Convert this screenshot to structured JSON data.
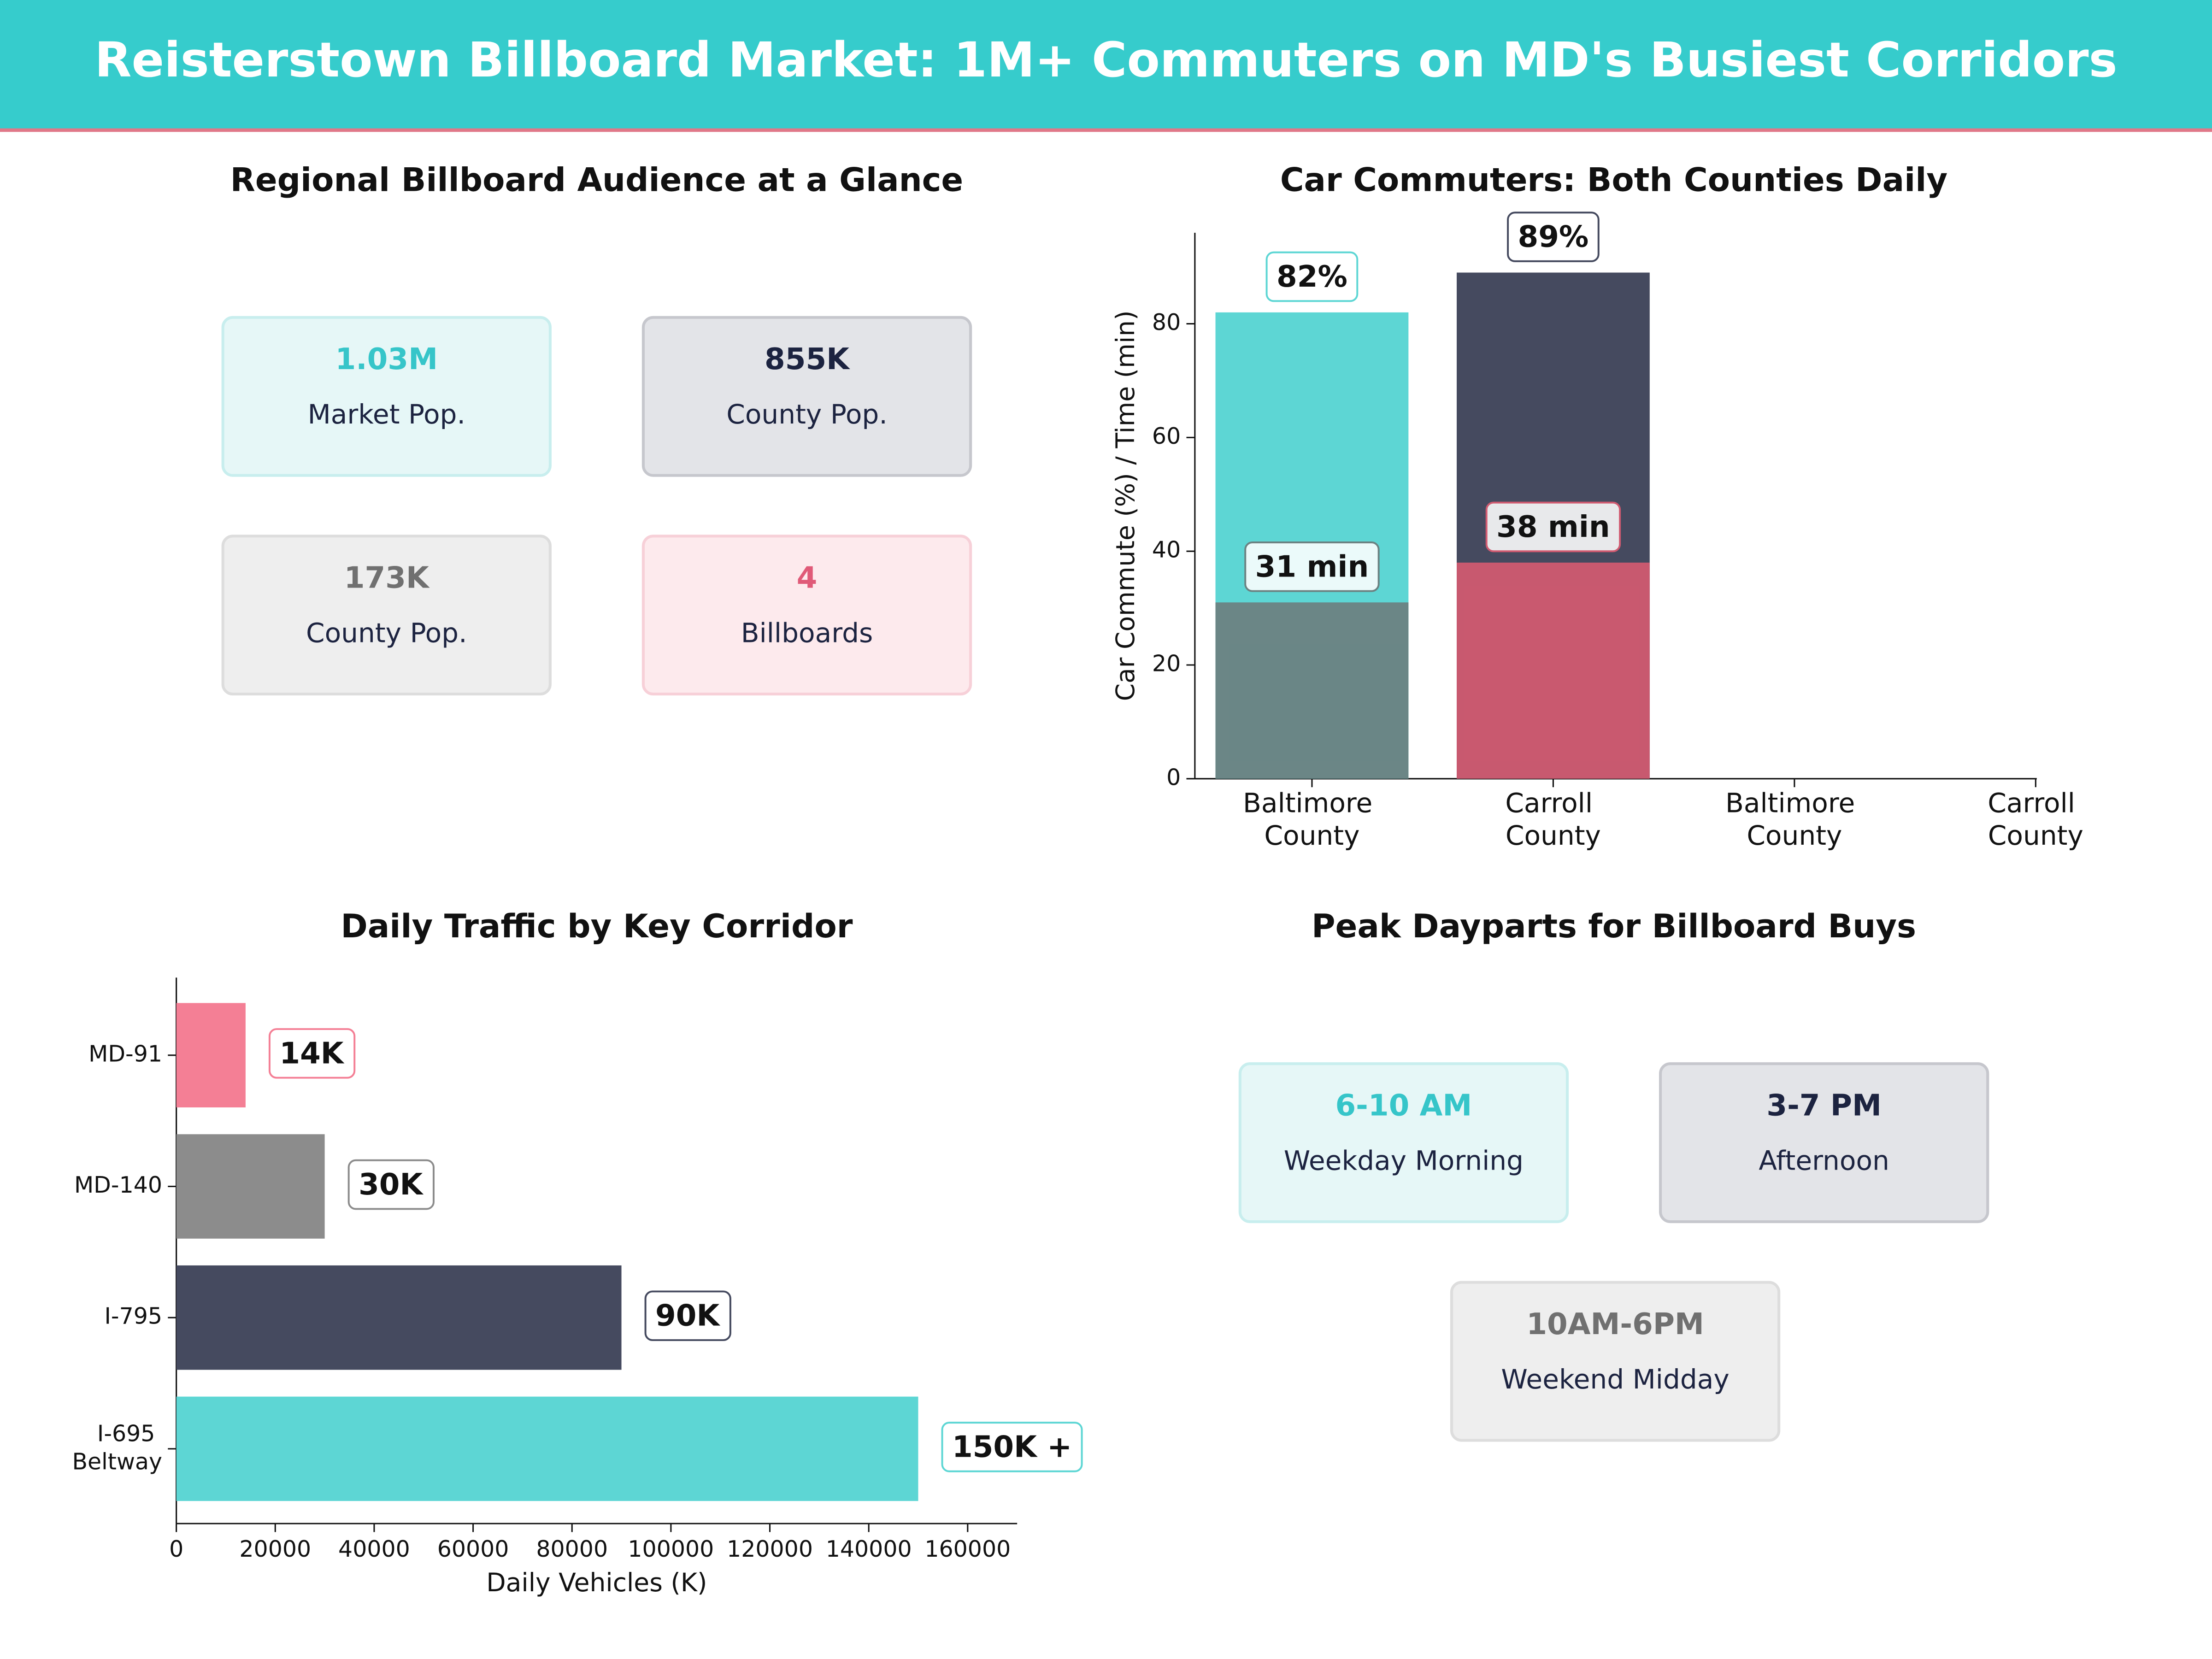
{
  "header": {
    "title": "Reisterstown Billboard Market: 1M+ Commuters on MD's Busiest Corridors"
  },
  "audience": {
    "title": "Regional Billboard Audience at a Glance",
    "cards": [
      {
        "value": "1.03M",
        "label": "Market Pop.",
        "color": "#36c5c9",
        "background": "#e6f7f7",
        "border": "#c8eeee"
      },
      {
        "value": "855K",
        "label": "County Pop.",
        "color": "#1c2340",
        "background": "#e3e4e8",
        "border": "#c6c7cd"
      },
      {
        "value": "173K",
        "label": "County Pop.",
        "color": "#707070",
        "background": "#eeeeee",
        "border": "#dddddd"
      },
      {
        "value": "4",
        "label": "Billboards",
        "color": "#e05a78",
        "background": "#fdeaed",
        "border": "#f7d0d8"
      }
    ]
  },
  "chart_data": [
    {
      "type": "bar",
      "title": "Car Commuters: Both Counties Daily",
      "ylabel": "Car Commute (%) / Time (min)",
      "categories": [
        "Baltimore County",
        "Carroll County",
        "Baltimore County",
        "Carroll County"
      ],
      "series": [
        {
          "values": [
            82,
            89,
            null,
            null
          ],
          "value_labels": [
            "82%",
            "89%",
            null,
            null
          ],
          "colors": [
            "#5dd6d4",
            "#454a5f",
            null,
            null
          ]
        },
        {
          "values": [
            31,
            38,
            null,
            null
          ],
          "value_labels": [
            "31 min",
            "38 min",
            null,
            null
          ],
          "colors": [
            "#6b8282",
            "#d05a70",
            null,
            null
          ]
        }
      ],
      "ylim": [
        0,
        96
      ],
      "yticks": [
        0,
        20,
        40,
        60,
        80
      ]
    },
    {
      "type": "barh",
      "title": "Daily Traffic by Key Corridor",
      "xlabel": "Daily Vehicles (K)",
      "categories": [
        "MD-91",
        "MD-140",
        "I-795",
        "I-695 Beltway"
      ],
      "values": [
        14000,
        30000,
        90000,
        150000
      ],
      "value_labels": [
        "14K",
        "30K",
        "90K",
        "150K +"
      ],
      "colors": [
        "#f47f95",
        "#8c8c8c",
        "#454a5f",
        "#5dd6d4"
      ],
      "xlim": [
        0,
        170000
      ],
      "xticks": [
        0,
        20000,
        40000,
        60000,
        80000,
        100000,
        120000,
        140000,
        160000
      ]
    }
  ],
  "dayparts": {
    "title": "Peak Dayparts for Billboard Buys",
    "cards": [
      {
        "value": "6-10 AM",
        "label": "Weekday Morning",
        "color": "#36c5c9",
        "background": "#e6f7f7",
        "border": "#c8eeee"
      },
      {
        "value": "3-7 PM",
        "label": "Afternoon",
        "color": "#1c2340",
        "background": "#e3e4e8",
        "border": "#c6c7cd"
      },
      {
        "value": "10AM-6PM",
        "label": "Weekend Midday",
        "color": "#707070",
        "background": "#eeeeee",
        "border": "#dddddd"
      }
    ]
  }
}
